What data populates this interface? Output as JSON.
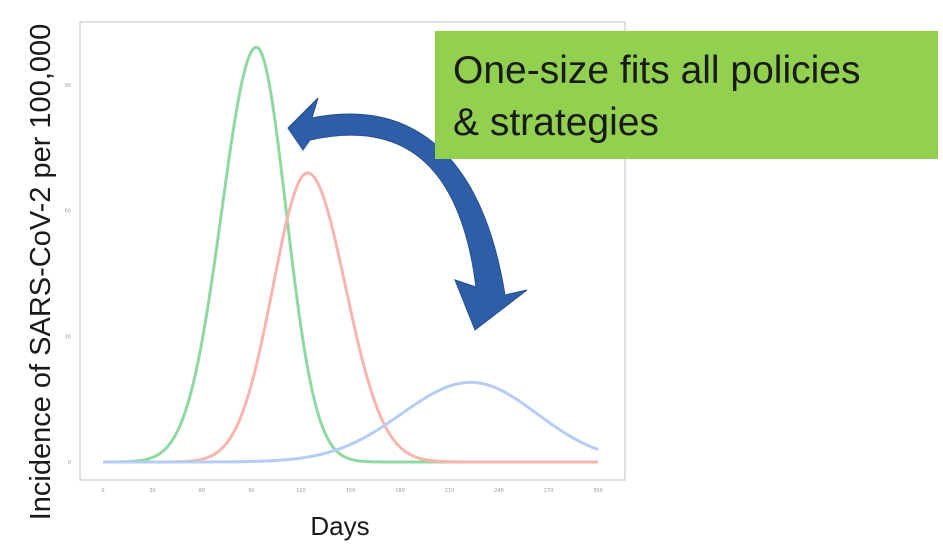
{
  "chart_data": {
    "type": "line",
    "title": "",
    "xlabel": "Days",
    "ylabel": "Incidence of SARS-CoV-2 per 100,000",
    "xlim": [
      0,
      300
    ],
    "ylim": [
      0,
      100
    ],
    "x_ticks": [
      "0",
      "30",
      "60",
      "90",
      "120",
      "150",
      "180",
      "210",
      "240",
      "270",
      "300"
    ],
    "y_ticks": [
      "0",
      "30",
      "60",
      "90"
    ],
    "grid": false,
    "series": [
      {
        "color": "#8fd9a0",
        "peak_day": 93,
        "peak_value": 99,
        "width_left": 21,
        "width_right": 18
      },
      {
        "color": "#f8b5ae",
        "peak_day": 124,
        "peak_value": 69,
        "width_left": 21,
        "width_right": 23
      },
      {
        "color": "#b4cdf4",
        "peak_day": 223,
        "peak_value": 19,
        "width_left": 42,
        "width_right": 40
      }
    ]
  },
  "annotation": {
    "line1": "One-size fits all policies",
    "line2": "& strategies",
    "background": "#92d050"
  },
  "arrow": {
    "icon": "curved-arrow-icon",
    "color": "#2e5ea8"
  }
}
